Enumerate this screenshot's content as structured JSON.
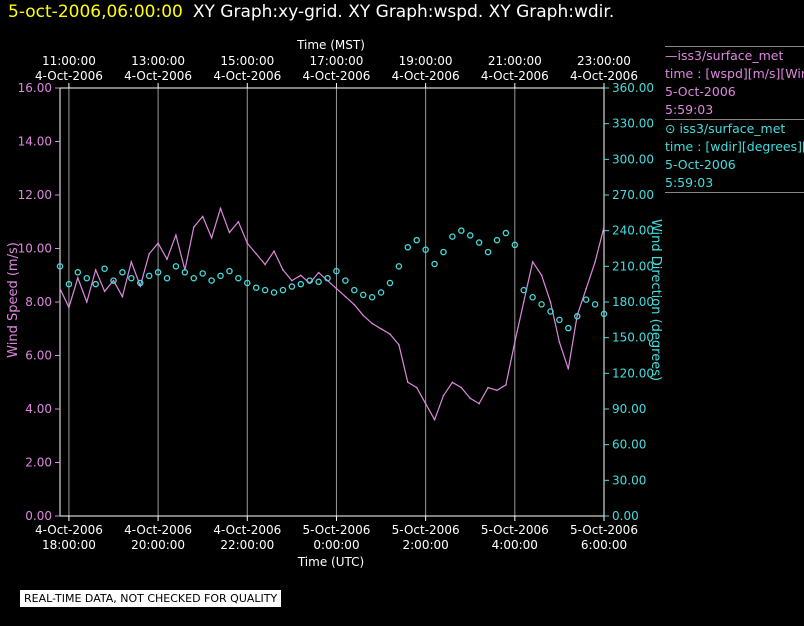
{
  "header": {
    "timestamp": "5-oct-2006,06:00:00",
    "graphs": "XY Graph:xy-grid.  XY Graph:wspd.  XY Graph:wdir."
  },
  "legend": {
    "series1": {
      "line1": "—iss3/surface_met",
      "line2": "time : [wspd][m/s][Win",
      "line3": "5-Oct-2006",
      "line4": "5:59:03"
    },
    "series2": {
      "line1": "⊙ iss3/surface_met",
      "line2": "time : [wdir][degrees][W",
      "line3": "5-Oct-2006",
      "line4": "5:59:03"
    }
  },
  "disclaimer": "REAL-TIME DATA, NOT CHECKED FOR QUALITY",
  "colors": {
    "wspd": "#dd88dd",
    "wdir": "#44dddd",
    "grid": "#999999",
    "title": "#ffff00"
  },
  "chart_data": {
    "type": "line",
    "top_axis_title": "Time (MST)",
    "bottom_axis_title": "Time (UTC)",
    "ylabel": "Wind Speed (m/s)",
    "y2label": "Wind Direction (degrees)",
    "ylim": [
      0,
      16
    ],
    "y2lim": [
      0,
      360
    ],
    "xlim_hours_utc": [
      17.8,
      30.0
    ],
    "yticks": [
      "0.00",
      "2.00",
      "4.00",
      "6.00",
      "8.00",
      "10.00",
      "12.00",
      "14.00",
      "16.00"
    ],
    "y2ticks": [
      "0.00",
      "30.00",
      "60.00",
      "90.00",
      "120.00",
      "150.00",
      "180.00",
      "210.00",
      "240.00",
      "270.00",
      "300.00",
      "330.00",
      "360.00"
    ],
    "bottom_ticks": [
      {
        "t": 18,
        "date": "4-Oct-2006",
        "time": "18:00:00"
      },
      {
        "t": 20,
        "date": "4-Oct-2006",
        "time": "20:00:00"
      },
      {
        "t": 22,
        "date": "4-Oct-2006",
        "time": "22:00:00"
      },
      {
        "t": 24,
        "date": "5-Oct-2006",
        "time": "0:00:00"
      },
      {
        "t": 26,
        "date": "5-Oct-2006",
        "time": "2:00:00"
      },
      {
        "t": 28,
        "date": "5-Oct-2006",
        "time": "4:00:00"
      },
      {
        "t": 30,
        "date": "5-Oct-2006",
        "time": "6:00:00"
      }
    ],
    "top_ticks": [
      {
        "t": 18,
        "date": "4-Oct-2006",
        "time": "11:00:00"
      },
      {
        "t": 20,
        "date": "4-Oct-2006",
        "time": "13:00:00"
      },
      {
        "t": 22,
        "date": "4-Oct-2006",
        "time": "15:00:00"
      },
      {
        "t": 24,
        "date": "4-Oct-2006",
        "time": "17:00:00"
      },
      {
        "t": 26,
        "date": "4-Oct-2006",
        "time": "19:00:00"
      },
      {
        "t": 28,
        "date": "4-Oct-2006",
        "time": "21:00:00"
      },
      {
        "t": 30,
        "date": "4-Oct-2006",
        "time": "23:00:00"
      }
    ],
    "series": [
      {
        "name": "iss3/surface_met wspd",
        "axis": "left",
        "style": "line",
        "x": [
          17.8,
          18.0,
          18.2,
          18.4,
          18.6,
          18.8,
          19.0,
          19.2,
          19.4,
          19.6,
          19.8,
          20.0,
          20.2,
          20.4,
          20.6,
          20.8,
          21.0,
          21.2,
          21.4,
          21.6,
          21.8,
          22.0,
          22.2,
          22.4,
          22.6,
          22.8,
          23.0,
          23.2,
          23.4,
          23.6,
          23.8,
          24.0,
          24.2,
          24.4,
          24.6,
          24.8,
          25.0,
          25.2,
          25.4,
          25.6,
          25.8,
          26.0,
          26.2,
          26.4,
          26.6,
          26.8,
          27.0,
          27.2,
          27.4,
          27.6,
          27.8,
          28.0,
          28.2,
          28.4,
          28.6,
          28.8,
          29.0,
          29.2,
          29.4,
          29.6,
          29.8,
          30.0
        ],
        "y": [
          8.5,
          7.8,
          8.9,
          8.0,
          9.2,
          8.4,
          8.8,
          8.2,
          9.5,
          8.6,
          9.8,
          10.2,
          9.6,
          10.5,
          9.2,
          10.8,
          11.2,
          10.4,
          11.5,
          10.6,
          11.0,
          10.2,
          9.8,
          9.4,
          9.9,
          9.2,
          8.8,
          9.0,
          8.7,
          9.1,
          8.8,
          8.5,
          8.2,
          7.9,
          7.5,
          7.2,
          7.0,
          6.8,
          6.4,
          5.0,
          4.8,
          4.2,
          3.6,
          4.5,
          5.0,
          4.8,
          4.4,
          4.2,
          4.8,
          4.7,
          4.9,
          6.5,
          8.0,
          9.5,
          9.0,
          8.0,
          6.5,
          5.5,
          7.5,
          8.5,
          9.5,
          10.8
        ]
      },
      {
        "name": "iss3/surface_met wdir",
        "axis": "right",
        "style": "markers",
        "x": [
          17.8,
          18.0,
          18.2,
          18.4,
          18.6,
          18.8,
          19.0,
          19.2,
          19.4,
          19.6,
          19.8,
          20.0,
          20.2,
          20.4,
          20.6,
          20.8,
          21.0,
          21.2,
          21.4,
          21.6,
          21.8,
          22.0,
          22.2,
          22.4,
          22.6,
          22.8,
          23.0,
          23.2,
          23.4,
          23.6,
          23.8,
          24.0,
          24.2,
          24.4,
          24.6,
          24.8,
          25.0,
          25.2,
          25.4,
          25.6,
          25.8,
          26.0,
          26.2,
          26.4,
          26.6,
          26.8,
          27.0,
          27.2,
          27.4,
          27.6,
          27.8,
          28.0,
          28.2,
          28.4,
          28.6,
          28.8,
          29.0,
          29.2,
          29.4,
          29.6,
          29.8,
          30.0
        ],
        "y": [
          210,
          195,
          205,
          200,
          195,
          208,
          198,
          205,
          200,
          196,
          202,
          205,
          200,
          210,
          205,
          200,
          204,
          198,
          202,
          206,
          200,
          196,
          192,
          190,
          188,
          190,
          193,
          195,
          198,
          197,
          200,
          206,
          198,
          190,
          186,
          184,
          188,
          196,
          210,
          226,
          232,
          224,
          212,
          222,
          235,
          240,
          236,
          230,
          222,
          232,
          238,
          228,
          190,
          184,
          178,
          172,
          165,
          158,
          168,
          182,
          178,
          170
        ]
      }
    ]
  }
}
